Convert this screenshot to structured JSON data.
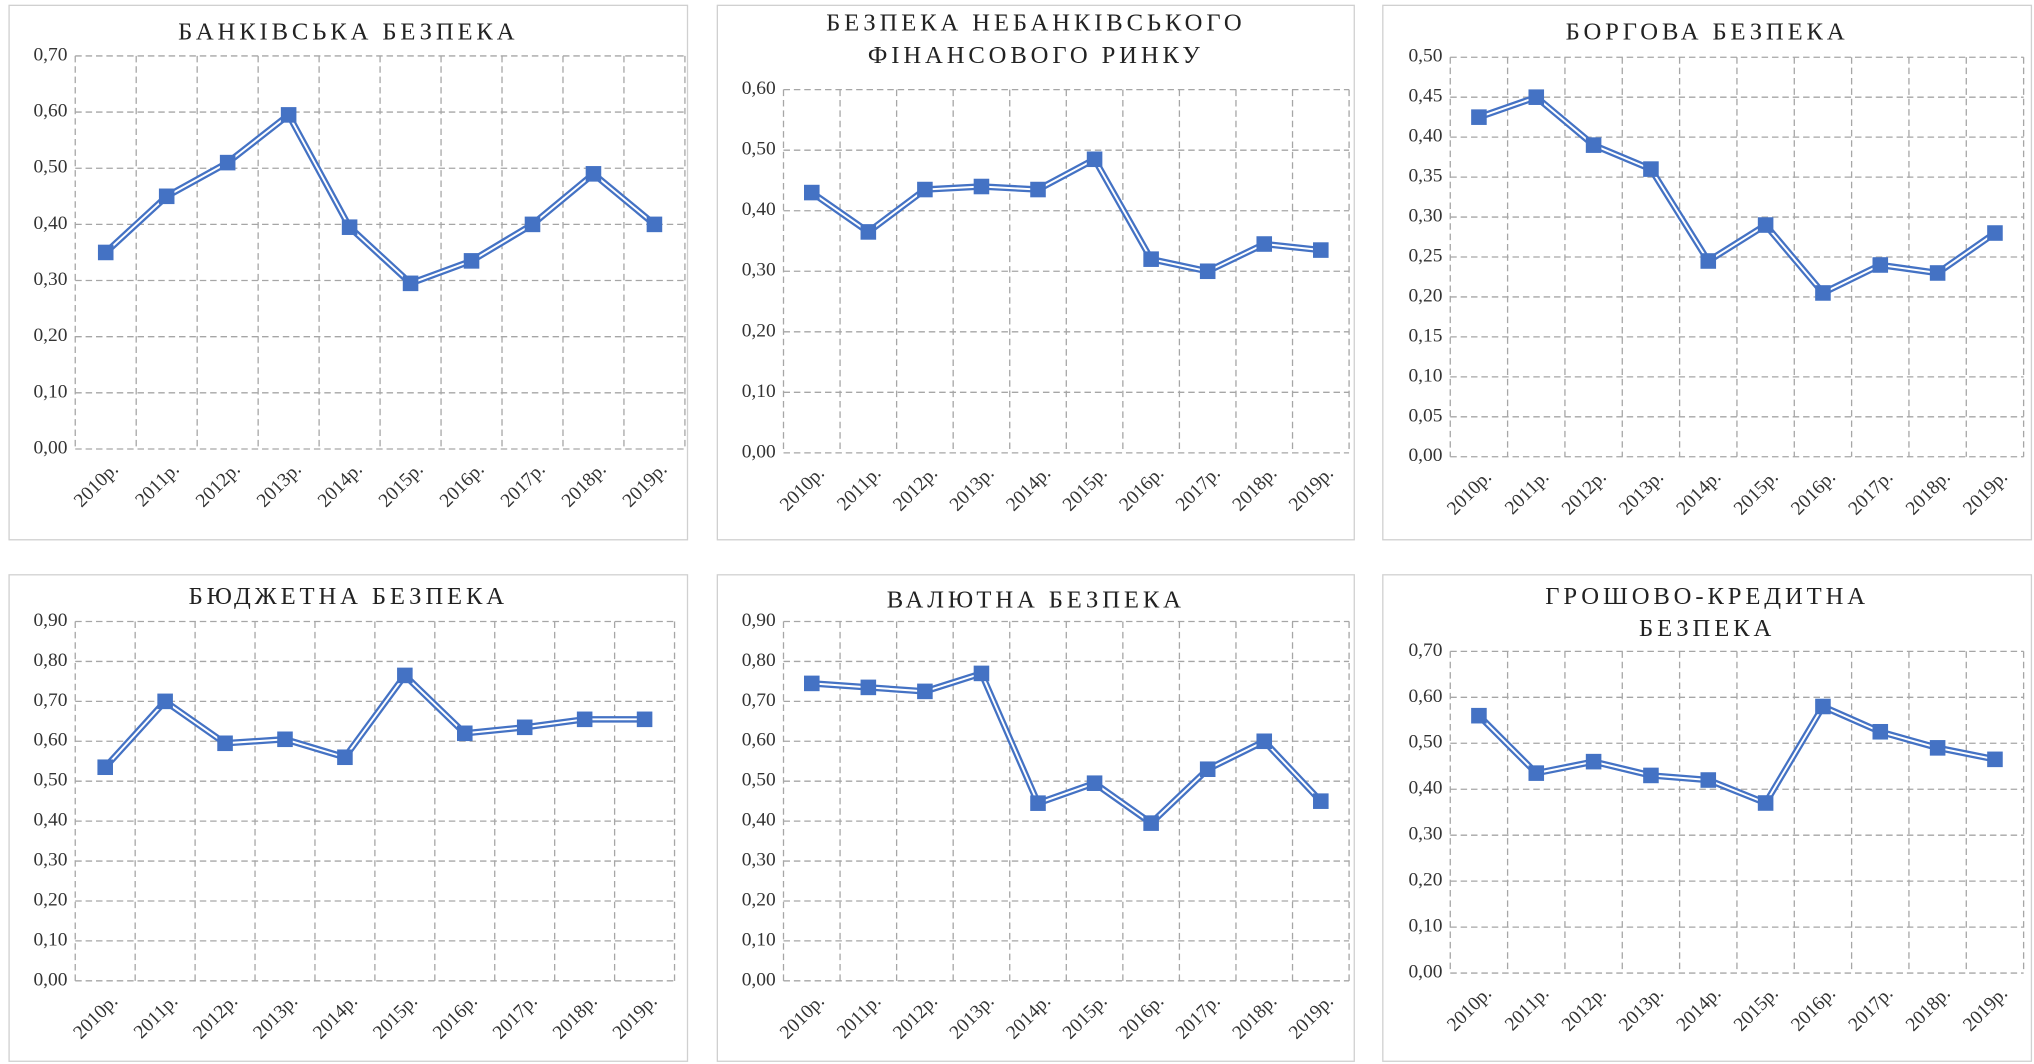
{
  "chart_data": [
    {
      "type": "line",
      "title": [
        "БАНКІВСЬКА БЕЗПЕКА"
      ],
      "categories": [
        "2010р.",
        "2011р.",
        "2012р.",
        "2013р.",
        "2014р.",
        "2015р.",
        "2016р.",
        "2017р.",
        "2018р.",
        "2019р."
      ],
      "values": [
        0.35,
        0.45,
        0.51,
        0.595,
        0.395,
        0.295,
        0.335,
        0.4,
        0.49,
        0.4
      ],
      "color": "#4472c4",
      "grid": true,
      "ylim": [
        0,
        0.7
      ],
      "yticks": [
        {
          "value": 0,
          "label": "0,00"
        },
        {
          "value": 0.1,
          "label": "0,10"
        },
        {
          "value": 0.2,
          "label": "0,20"
        },
        {
          "value": 0.3,
          "label": "0,30"
        },
        {
          "value": 0.4,
          "label": "0,40"
        },
        {
          "value": 0.5,
          "label": "0,50"
        },
        {
          "value": 0.6,
          "label": "0,60"
        },
        {
          "value": 0.7,
          "label": "0,70"
        }
      ]
    },
    {
      "type": "line",
      "title": [
        "БЕЗПЕКА НЕБАНКІВСЬКОГО",
        "ФІНАНСОВОГО РИНКУ"
      ],
      "categories": [
        "2010р.",
        "2011р.",
        "2012р.",
        "2013р.",
        "2014р.",
        "2015р.",
        "2016р.",
        "2017р.",
        "2018р.",
        "2019р."
      ],
      "values": [
        0.43,
        0.365,
        0.435,
        0.44,
        0.435,
        0.485,
        0.32,
        0.3,
        0.345,
        0.335
      ],
      "color": "#4472c4",
      "grid": true,
      "ylim": [
        0,
        0.6
      ],
      "yticks": [
        {
          "value": 0,
          "label": "0,00"
        },
        {
          "value": 0.1,
          "label": "0,10"
        },
        {
          "value": 0.2,
          "label": "0,20"
        },
        {
          "value": 0.3,
          "label": "0,30"
        },
        {
          "value": 0.4,
          "label": "0,40"
        },
        {
          "value": 0.5,
          "label": "0,50"
        },
        {
          "value": 0.6,
          "label": "0,60"
        }
      ]
    },
    {
      "type": "line",
      "title": [
        "БОРГОВА БЕЗПЕКА"
      ],
      "categories": [
        "2010р.",
        "2011р.",
        "2012р.",
        "2013р.",
        "2014р.",
        "2015р.",
        "2016р.",
        "2017р.",
        "2018р.",
        "2019р."
      ],
      "values": [
        0.425,
        0.45,
        0.39,
        0.36,
        0.245,
        0.29,
        0.205,
        0.24,
        0.23,
        0.28
      ],
      "color": "#4472c4",
      "grid": true,
      "ylim": [
        0,
        0.5
      ],
      "yticks": [
        {
          "value": 0,
          "label": "0,00"
        },
        {
          "value": 0.05,
          "label": "0,05"
        },
        {
          "value": 0.1,
          "label": "0,10"
        },
        {
          "value": 0.15,
          "label": "0,15"
        },
        {
          "value": 0.2,
          "label": "0,20"
        },
        {
          "value": 0.25,
          "label": "0,25"
        },
        {
          "value": 0.3,
          "label": "0,30"
        },
        {
          "value": 0.35,
          "label": "0,35"
        },
        {
          "value": 0.4,
          "label": "0,40"
        },
        {
          "value": 0.45,
          "label": "0,45"
        },
        {
          "value": 0.5,
          "label": "0,50"
        }
      ]
    },
    {
      "type": "line",
      "title": [
        "БЮДЖЕТНА БЕЗПЕКА"
      ],
      "categories": [
        "2010р.",
        "2011р.",
        "2012р.",
        "2013р.",
        "2014р.",
        "2015р.",
        "2016р.",
        "2017р.",
        "2018р.",
        "2019р."
      ],
      "values": [
        0.535,
        0.7,
        0.595,
        0.605,
        0.56,
        0.765,
        0.62,
        0.635,
        0.655,
        0.655
      ],
      "color": "#4472c4",
      "grid": true,
      "ylim": [
        0,
        0.9
      ],
      "yticks": [
        {
          "value": 0,
          "label": "0,00"
        },
        {
          "value": 0.1,
          "label": "0,10"
        },
        {
          "value": 0.2,
          "label": "0,20"
        },
        {
          "value": 0.3,
          "label": "0,30"
        },
        {
          "value": 0.4,
          "label": "0,40"
        },
        {
          "value": 0.5,
          "label": "0,50"
        },
        {
          "value": 0.6,
          "label": "0,60"
        },
        {
          "value": 0.7,
          "label": "0,70"
        },
        {
          "value": 0.8,
          "label": "0,80"
        },
        {
          "value": 0.9,
          "label": "0,90"
        }
      ]
    },
    {
      "type": "line",
      "title": [
        "ВАЛЮТНА БЕЗПЕКА"
      ],
      "categories": [
        "2010р.",
        "2011р.",
        "2012р.",
        "2013р.",
        "2014р.",
        "2015р.",
        "2016р.",
        "2017р.",
        "2018р.",
        "2019р."
      ],
      "values": [
        0.745,
        0.735,
        0.725,
        0.77,
        0.445,
        0.495,
        0.395,
        0.53,
        0.6,
        0.45
      ],
      "color": "#4472c4",
      "grid": true,
      "ylim": [
        0,
        0.9
      ],
      "yticks": [
        {
          "value": 0,
          "label": "0,00"
        },
        {
          "value": 0.1,
          "label": "0,10"
        },
        {
          "value": 0.2,
          "label": "0,20"
        },
        {
          "value": 0.3,
          "label": "0,30"
        },
        {
          "value": 0.4,
          "label": "0,40"
        },
        {
          "value": 0.5,
          "label": "0,50"
        },
        {
          "value": 0.6,
          "label": "0,60"
        },
        {
          "value": 0.7,
          "label": "0,70"
        },
        {
          "value": 0.8,
          "label": "0,80"
        },
        {
          "value": 0.9,
          "label": "0,90"
        }
      ]
    },
    {
      "type": "line",
      "title": [
        "ГРОШОВО-КРЕДИТНА",
        "БЕЗПЕКА"
      ],
      "categories": [
        "2010р.",
        "2011р.",
        "2012р.",
        "2013р.",
        "2014р.",
        "2015р.",
        "2016р.",
        "2017р.",
        "2018р.",
        "2019р."
      ],
      "values": [
        0.56,
        0.435,
        0.46,
        0.43,
        0.42,
        0.37,
        0.58,
        0.525,
        0.49,
        0.465
      ],
      "color": "#4472c4",
      "grid": true,
      "ylim": [
        0,
        0.7
      ],
      "yticks": [
        {
          "value": 0,
          "label": "0,00"
        },
        {
          "value": 0.1,
          "label": "0,10"
        },
        {
          "value": 0.2,
          "label": "0,20"
        },
        {
          "value": 0.3,
          "label": "0,30"
        },
        {
          "value": 0.4,
          "label": "0,40"
        },
        {
          "value": 0.5,
          "label": "0,50"
        },
        {
          "value": 0.6,
          "label": "0,60"
        },
        {
          "value": 0.7,
          "label": "0,70"
        }
      ]
    }
  ]
}
